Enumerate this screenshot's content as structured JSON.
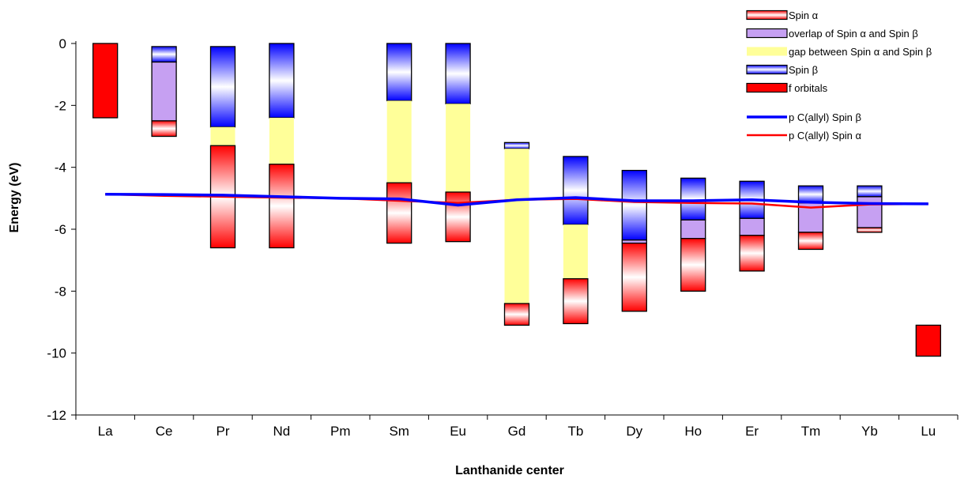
{
  "chart_data": {
    "type": "bar",
    "title": "",
    "xlabel": "Lanthanide center",
    "ylabel": "Energy (eV)",
    "ylim": [
      -12,
      0
    ],
    "yticks": [
      0,
      -2,
      -4,
      -6,
      -8,
      -10,
      -12
    ],
    "grid": false,
    "legend_position": "top-right",
    "categories": [
      "La",
      "Ce",
      "Pr",
      "Nd",
      "Pm",
      "Sm",
      "Eu",
      "Gd",
      "Tb",
      "Dy",
      "Ho",
      "Er",
      "Tm",
      "Yb",
      "Lu"
    ],
    "legend": [
      {
        "label": "Spin α",
        "kind": "alpha"
      },
      {
        "label": "overlap of Spin α and Spin β",
        "kind": "overlap"
      },
      {
        "label": "gap between Spin α and Spin β",
        "kind": "gap"
      },
      {
        "label": "Spin β",
        "kind": "beta"
      },
      {
        "label": "f orbitals",
        "kind": "f"
      },
      {
        "label": "p C(allyl) Spin β",
        "kind": "line-beta"
      },
      {
        "label": "p C(allyl) Spin α",
        "kind": "line-alpha"
      }
    ],
    "colors": {
      "alpha": "#ff0000",
      "beta": "#0000ff",
      "overlap": "#c6a0f2",
      "gap": "#ffff99",
      "f": "#ff0000",
      "line_beta": "#0000ff",
      "line_alpha": "#ff0000"
    },
    "segments": [
      {
        "cat": "La",
        "kind": "f",
        "top": 0,
        "bottom": -2.4
      },
      {
        "cat": "Ce",
        "kind": "beta",
        "top": -0.1,
        "bottom": -0.6
      },
      {
        "cat": "Ce",
        "kind": "overlap",
        "top": -0.6,
        "bottom": -2.5
      },
      {
        "cat": "Ce",
        "kind": "alpha",
        "top": -2.5,
        "bottom": -3.0
      },
      {
        "cat": "Pr",
        "kind": "beta",
        "top": -0.1,
        "bottom": -2.7
      },
      {
        "cat": "Pr",
        "kind": "gap",
        "top": -2.7,
        "bottom": -3.3
      },
      {
        "cat": "Pr",
        "kind": "alpha",
        "top": -3.3,
        "bottom": -6.6
      },
      {
        "cat": "Nd",
        "kind": "beta",
        "top": 0,
        "bottom": -2.4
      },
      {
        "cat": "Nd",
        "kind": "gap",
        "top": -2.4,
        "bottom": -3.9
      },
      {
        "cat": "Nd",
        "kind": "alpha",
        "top": -3.9,
        "bottom": -6.6
      },
      {
        "cat": "Sm",
        "kind": "beta",
        "top": 0,
        "bottom": -1.85
      },
      {
        "cat": "Sm",
        "kind": "gap",
        "top": -1.85,
        "bottom": -4.5
      },
      {
        "cat": "Sm",
        "kind": "alpha",
        "top": -4.5,
        "bottom": -6.45
      },
      {
        "cat": "Eu",
        "kind": "beta",
        "top": 0,
        "bottom": -1.95
      },
      {
        "cat": "Eu",
        "kind": "gap",
        "top": -1.95,
        "bottom": -4.8
      },
      {
        "cat": "Eu",
        "kind": "alpha",
        "top": -4.8,
        "bottom": -6.4
      },
      {
        "cat": "Gd",
        "kind": "beta",
        "top": -3.2,
        "bottom": -3.4
      },
      {
        "cat": "Gd",
        "kind": "gap",
        "top": -3.4,
        "bottom": -8.4
      },
      {
        "cat": "Gd",
        "kind": "alpha",
        "top": -8.4,
        "bottom": -9.1
      },
      {
        "cat": "Tb",
        "kind": "beta",
        "top": -3.65,
        "bottom": -5.85
      },
      {
        "cat": "Tb",
        "kind": "gap",
        "top": -5.85,
        "bottom": -7.6
      },
      {
        "cat": "Tb",
        "kind": "alpha",
        "top": -7.6,
        "bottom": -9.05
      },
      {
        "cat": "Dy",
        "kind": "beta",
        "top": -4.1,
        "bottom": -6.35
      },
      {
        "cat": "Dy",
        "kind": "overlap",
        "top": -6.35,
        "bottom": -6.45
      },
      {
        "cat": "Dy",
        "kind": "alpha",
        "top": -6.45,
        "bottom": -8.65
      },
      {
        "cat": "Ho",
        "kind": "beta",
        "top": -4.35,
        "bottom": -5.7
      },
      {
        "cat": "Ho",
        "kind": "overlap",
        "top": -5.7,
        "bottom": -6.3
      },
      {
        "cat": "Ho",
        "kind": "alpha",
        "top": -6.3,
        "bottom": -8.0
      },
      {
        "cat": "Er",
        "kind": "beta",
        "top": -4.45,
        "bottom": -5.65
      },
      {
        "cat": "Er",
        "kind": "overlap",
        "top": -5.65,
        "bottom": -6.2
      },
      {
        "cat": "Er",
        "kind": "alpha",
        "top": -6.2,
        "bottom": -7.35
      },
      {
        "cat": "Tm",
        "kind": "beta",
        "top": -4.6,
        "bottom": -5.15
      },
      {
        "cat": "Tm",
        "kind": "overlap",
        "top": -5.15,
        "bottom": -6.1
      },
      {
        "cat": "Tm",
        "kind": "alpha",
        "top": -6.1,
        "bottom": -6.65
      },
      {
        "cat": "Yb",
        "kind": "beta",
        "top": -4.6,
        "bottom": -4.95
      },
      {
        "cat": "Yb",
        "kind": "overlap",
        "top": -4.95,
        "bottom": -5.95
      },
      {
        "cat": "Yb",
        "kind": "alpha",
        "top": -5.95,
        "bottom": -6.1
      },
      {
        "cat": "Lu",
        "kind": "f",
        "top": -9.1,
        "bottom": -10.1
      }
    ],
    "series": [
      {
        "name": "p C(allyl) Spin β",
        "kind": "line-beta",
        "values": [
          -4.87,
          -4.88,
          -4.9,
          -4.95,
          -5.0,
          -5.02,
          -5.22,
          -5.05,
          -4.98,
          -5.08,
          -5.08,
          -5.05,
          -5.13,
          -5.17,
          -5.18
        ]
      },
      {
        "name": "p C(allyl) Spin α",
        "kind": "line-alpha",
        "values": [
          -4.87,
          -4.92,
          -4.95,
          -4.98,
          -5.0,
          -5.08,
          -5.15,
          -5.05,
          -5.02,
          -5.12,
          -5.15,
          -5.17,
          -5.3,
          -5.2,
          -5.18
        ]
      }
    ]
  }
}
